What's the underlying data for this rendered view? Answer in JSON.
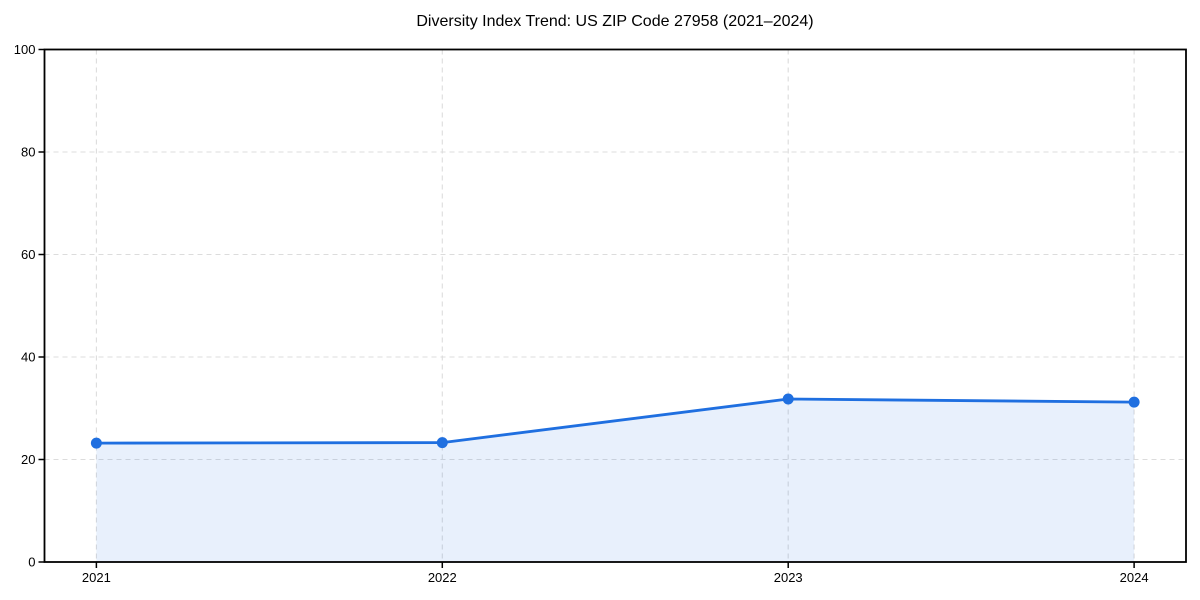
{
  "chart_data": {
    "type": "line",
    "title": "Diversity Index Trend: US ZIP Code 27958 (2021–2024)",
    "x": [
      2021,
      2022,
      2023,
      2024
    ],
    "x_tick_labels": [
      "2021",
      "2022",
      "2023",
      "2024"
    ],
    "series": [
      {
        "name": "Diversity Index",
        "values": [
          23.2,
          23.3,
          31.8,
          31.2
        ]
      }
    ],
    "xlabel": "",
    "ylabel": "",
    "ylim": [
      0,
      100
    ],
    "yticks": [
      0,
      20,
      40,
      60,
      80,
      100
    ],
    "grid": {
      "on": true,
      "style": "dashed"
    },
    "legend": {
      "visible": false
    },
    "area_fill": true,
    "marker": "circle",
    "colors": {
      "line": "#1f6fe0",
      "marker": "#1f6fe0",
      "fill": "rgba(31,111,224,0.10)",
      "grid": "#dcdcdc",
      "axis": "#000000",
      "background": "#ffffff",
      "text": "#000000"
    }
  }
}
